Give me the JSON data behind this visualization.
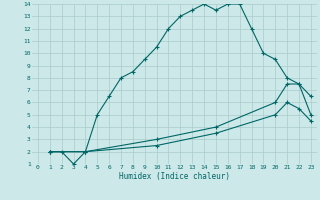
{
  "xlabel": "Humidex (Indice chaleur)",
  "background_color": "#cce8e8",
  "grid_color": "#aacccc",
  "line_color": "#006666",
  "xlim": [
    -0.5,
    23.5
  ],
  "ylim": [
    1,
    14
  ],
  "xticks": [
    0,
    1,
    2,
    3,
    4,
    5,
    6,
    7,
    8,
    9,
    10,
    11,
    12,
    13,
    14,
    15,
    16,
    17,
    18,
    19,
    20,
    21,
    22,
    23
  ],
  "yticks": [
    1,
    2,
    3,
    4,
    5,
    6,
    7,
    8,
    9,
    10,
    11,
    12,
    13,
    14
  ],
  "line1_x": [
    1,
    2,
    3,
    4,
    5,
    6,
    7,
    8,
    9,
    10,
    11,
    12,
    13,
    14,
    15,
    16,
    17,
    18,
    19,
    20,
    21,
    22,
    23
  ],
  "line1_y": [
    2,
    2,
    1,
    2,
    5,
    6.5,
    8,
    8.5,
    9.5,
    10.5,
    12,
    13,
    13.5,
    14,
    13.5,
    14,
    14,
    12,
    10,
    9.5,
    8,
    7.5,
    6.5
  ],
  "line2_x": [
    1,
    4,
    10,
    15,
    20,
    21,
    22,
    23
  ],
  "line2_y": [
    2,
    2,
    3,
    4,
    6,
    7.5,
    7.5,
    5
  ],
  "line3_x": [
    1,
    4,
    10,
    15,
    20,
    21,
    22,
    23
  ],
  "line3_y": [
    2,
    2,
    2.5,
    3.5,
    5,
    6,
    5.5,
    4.5
  ]
}
